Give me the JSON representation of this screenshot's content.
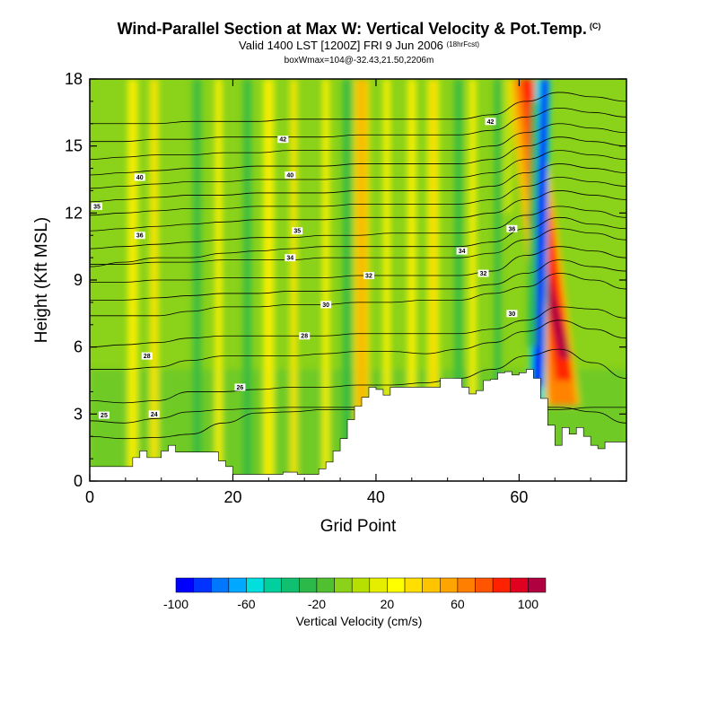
{
  "header": {
    "title": "Wind-Parallel Section at Max W: Vertical Velocity & Pot.Temp.",
    "title_mark": "(C)",
    "valid": "Valid 1400 LST [1200Z] FRI 9 Jun 2006",
    "forecast": "(18hrFcst)",
    "box": "boxWmax=104@-32.43,21.50,2206m"
  },
  "chart_data": {
    "type": "heatmap",
    "xlabel": "Grid Point",
    "ylabel": "Height (Kft MSL)",
    "xlim": [
      0,
      75
    ],
    "ylim": [
      0,
      18
    ],
    "x_ticks": [
      0,
      20,
      40,
      60
    ],
    "y_ticks": [
      0,
      3,
      6,
      9,
      12,
      15,
      18
    ],
    "colorbar": {
      "title": "Vertical Velocity (cm/s)",
      "ticks": [
        -100,
        -60,
        -20,
        20,
        60,
        100
      ],
      "levels": [
        -100,
        -90,
        -80,
        -70,
        -60,
        -50,
        -40,
        -30,
        -20,
        -10,
        0,
        10,
        20,
        30,
        40,
        50,
        60,
        70,
        80,
        90,
        100,
        110
      ],
      "colors": [
        "#0000ff",
        "#0033ff",
        "#0077ff",
        "#00a8ff",
        "#00dede",
        "#00cf9e",
        "#10c070",
        "#2db84a",
        "#50c030",
        "#8bd21a",
        "#b6e000",
        "#e6ee00",
        "#ffff00",
        "#ffde00",
        "#ffc400",
        "#ffa500",
        "#ff8000",
        "#ff5500",
        "#ff2200",
        "#e00020",
        "#b00040"
      ]
    },
    "terrain_kft": [
      [
        0,
        0.65
      ],
      [
        5,
        0.65
      ],
      [
        6,
        1.05
      ],
      [
        7,
        1.35
      ],
      [
        8,
        1.05
      ],
      [
        9,
        1.05
      ],
      [
        10,
        1.35
      ],
      [
        11,
        1.6
      ],
      [
        12,
        1.3
      ],
      [
        13,
        1.3
      ],
      [
        17,
        1.3
      ],
      [
        18,
        0.9
      ],
      [
        19,
        0.65
      ],
      [
        20,
        0.3
      ],
      [
        21,
        0.3
      ],
      [
        26,
        0.3
      ],
      [
        27,
        0.4
      ],
      [
        28,
        0.4
      ],
      [
        29,
        0.3
      ],
      [
        31,
        0.3
      ],
      [
        32,
        0.55
      ],
      [
        33,
        0.85
      ],
      [
        34,
        1.35
      ],
      [
        35,
        1.9
      ],
      [
        36,
        2.75
      ],
      [
        37,
        3.35
      ],
      [
        38,
        3.75
      ],
      [
        39,
        4.2
      ],
      [
        40,
        4.1
      ],
      [
        41,
        3.85
      ],
      [
        42,
        4.2
      ],
      [
        48,
        4.2
      ],
      [
        49,
        4.6
      ],
      [
        51,
        4.6
      ],
      [
        52,
        4.2
      ],
      [
        53,
        3.9
      ],
      [
        54,
        4.05
      ],
      [
        55,
        4.5
      ],
      [
        56,
        4.55
      ],
      [
        57,
        4.85
      ],
      [
        58,
        4.9
      ],
      [
        59,
        4.75
      ],
      [
        60,
        4.85
      ],
      [
        61,
        5.0
      ],
      [
        62,
        4.6
      ],
      [
        63,
        3.7
      ],
      [
        64,
        2.5
      ],
      [
        65,
        1.6
      ],
      [
        66,
        2.4
      ],
      [
        67,
        2.1
      ],
      [
        68,
        2.4
      ],
      [
        69,
        2.0
      ],
      [
        70,
        1.6
      ],
      [
        71,
        1.45
      ],
      [
        72,
        1.75
      ],
      [
        73,
        1.75
      ],
      [
        74,
        1.75
      ],
      [
        75,
        1.75
      ]
    ],
    "theta_contours": [
      {
        "label": "25",
        "z": [
          2.0,
          1.9,
          1.95,
          2.1,
          2.6,
          3.05,
          3.1,
          3.2,
          3.2,
          3.2,
          3.15,
          3.2,
          3.3,
          3.3,
          3.3,
          3.1,
          2.6
        ],
        "lx": 2,
        "ly": 2.95
      },
      {
        "label": "24",
        "z": [
          2.7,
          2.6,
          2.8,
          3.1,
          3.2,
          3.25,
          3.3,
          3.3,
          3.3,
          3.3,
          3.25,
          3.2,
          3.2,
          3.2,
          3.2,
          3.3,
          3.3
        ],
        "lx": 9,
        "ly": 3.0
      },
      {
        "label": "26",
        "z": [
          3.6,
          3.5,
          3.6,
          4.0,
          4.0,
          4.1,
          4.2,
          4.2,
          4.3,
          4.3,
          4.4,
          4.6,
          5.0,
          5.6,
          5.9,
          5.3,
          4.6
        ],
        "lx": 21,
        "ly": 4.2
      },
      {
        "label": "28",
        "z": [
          5.0,
          5.0,
          5.1,
          5.4,
          5.6,
          5.6,
          5.6,
          5.7,
          5.8,
          5.8,
          5.7,
          5.9,
          6.2,
          6.7,
          7.2,
          6.8,
          6.4
        ],
        "lx": 8,
        "ly": 5.6
      },
      {
        "label": "28",
        "z": [
          6.0,
          6.1,
          6.2,
          6.4,
          6.5,
          6.5,
          6.5,
          6.5,
          6.6,
          6.6,
          6.6,
          6.6,
          6.8,
          7.2,
          7.8,
          7.7,
          7.3
        ],
        "lx": 30,
        "ly": 6.5
      },
      {
        "label": "30",
        "z": [
          7.4,
          7.4,
          7.4,
          7.6,
          7.8,
          7.8,
          7.9,
          7.9,
          8.0,
          8.0,
          8.1,
          8.1,
          8.4,
          8.7,
          9.3,
          9.0,
          8.6
        ],
        "lx": 33,
        "ly": 7.9
      },
      {
        "label": "30",
        "z": [
          8.1,
          8.1,
          8.2,
          8.3,
          8.4,
          8.4,
          8.5,
          8.5,
          8.6,
          8.6,
          8.6,
          8.6,
          8.8,
          9.3,
          9.9,
          9.6,
          9.4
        ],
        "lx": 59,
        "ly": 7.5
      },
      {
        "label": "32",
        "z": [
          8.9,
          8.9,
          9.0,
          9.0,
          9.1,
          9.1,
          9.1,
          9.1,
          9.2,
          9.2,
          9.2,
          9.2,
          9.4,
          10.1,
          10.5,
          10.3,
          10.0
        ],
        "lx": 39,
        "ly": 9.2
      },
      {
        "label": "32",
        "z": [
          9.7,
          9.7,
          9.8,
          9.8,
          9.9,
          9.9,
          9.9,
          10.0,
          10.0,
          10.0,
          10.0,
          10.0,
          10.2,
          10.8,
          11.3,
          11.1,
          10.8
        ],
        "lx": 55,
        "ly": 9.3
      },
      {
        "label": "34",
        "z": [
          9.6,
          9.8,
          10.0,
          10.0,
          10.2,
          10.3,
          10.4,
          10.5,
          10.5,
          10.5,
          10.5,
          10.5,
          10.7,
          11.3,
          11.8,
          11.5,
          11.3
        ],
        "lx": 28,
        "ly": 10.0
      },
      {
        "label": "34",
        "z": [
          10.4,
          10.5,
          10.6,
          10.7,
          10.8,
          10.9,
          10.9,
          11.0,
          11.0,
          11.1,
          11.1,
          11.1,
          11.3,
          11.9,
          12.3,
          12.1,
          11.8
        ],
        "lx": 52,
        "ly": 10.3
      },
      {
        "label": "35",
        "z": [
          11.2,
          11.3,
          11.4,
          11.5,
          11.6,
          11.7,
          11.7,
          11.7,
          11.8,
          11.8,
          11.8,
          11.8,
          12.0,
          12.6,
          13.0,
          12.8,
          12.6
        ],
        "lx": 29,
        "ly": 11.2
      },
      {
        "label": "36",
        "z": [
          11.9,
          12.0,
          12.1,
          12.2,
          12.2,
          12.3,
          12.3,
          12.3,
          12.4,
          12.4,
          12.4,
          12.4,
          12.6,
          13.2,
          13.6,
          13.4,
          13.2
        ],
        "lx": 59,
        "ly": 11.3
      },
      {
        "label": "35",
        "z": [
          12.5,
          12.6,
          12.7,
          12.8,
          12.8,
          12.9,
          12.9,
          12.9,
          13.0,
          13.0,
          13.0,
          13.0,
          13.2,
          13.8,
          14.2,
          14.0,
          13.8
        ],
        "lx": 1,
        "ly": 12.3
      },
      {
        "label": "36",
        "z": [
          13.1,
          13.2,
          13.3,
          13.4,
          13.4,
          13.5,
          13.5,
          13.5,
          13.6,
          13.6,
          13.6,
          13.6,
          13.8,
          14.4,
          14.8,
          14.6,
          14.4
        ],
        "lx": 7,
        "ly": 11.0
      },
      {
        "label": "40",
        "z": [
          13.7,
          13.8,
          13.9,
          14.0,
          14.0,
          14.1,
          14.1,
          14.1,
          14.2,
          14.2,
          14.2,
          14.2,
          14.4,
          15.0,
          15.4,
          15.2,
          15.0
        ],
        "lx": 28,
        "ly": 13.7
      },
      {
        "label": "40",
        "z": [
          14.4,
          14.5,
          14.6,
          14.6,
          14.7,
          14.7,
          14.8,
          14.8,
          14.8,
          14.8,
          14.8,
          14.8,
          15.0,
          15.6,
          16.0,
          15.8,
          15.6
        ],
        "lx": 7,
        "ly": 13.6
      },
      {
        "label": "42",
        "z": [
          15.2,
          15.2,
          15.3,
          15.3,
          15.4,
          15.4,
          15.4,
          15.4,
          15.5,
          15.5,
          15.5,
          15.5,
          15.7,
          16.3,
          16.7,
          16.5,
          16.3
        ],
        "lx": 27,
        "ly": 15.3
      },
      {
        "label": "42",
        "z": [
          16.0,
          16.0,
          16.0,
          16.1,
          16.1,
          16.1,
          16.2,
          16.2,
          16.2,
          16.2,
          16.2,
          16.2,
          16.4,
          17.0,
          17.4,
          17.2,
          17.0
        ],
        "lx": 56,
        "ly": 16.1
      }
    ],
    "vv_bands": [
      {
        "x": 6.0,
        "w": 1.4,
        "value": 20
      },
      {
        "x": 9.0,
        "w": 1.2,
        "value": 25
      },
      {
        "x": 18.0,
        "w": 1.0,
        "value": 20
      },
      {
        "x": 25.0,
        "w": 1.5,
        "value": 20
      },
      {
        "x": 28.5,
        "w": 1.0,
        "value": 25
      },
      {
        "x": 33.0,
        "w": 1.0,
        "value": 20
      },
      {
        "x": 38.0,
        "w": 2.2,
        "value": 35
      },
      {
        "x": 41.5,
        "w": 1.0,
        "value": 20
      },
      {
        "x": 45.0,
        "w": 1.2,
        "value": 20
      },
      {
        "x": 48.0,
        "w": 1.6,
        "value": 25
      },
      {
        "x": 53.5,
        "w": 1.0,
        "value": 20
      }
    ],
    "vv_minus_bands": [
      {
        "x": 15.0,
        "w": 1.2,
        "value": -25
      },
      {
        "x": 22.0,
        "w": 1.2,
        "value": -25
      },
      {
        "x": 36.0,
        "w": 1.4,
        "value": -25
      },
      {
        "x": 51.5,
        "w": 1.2,
        "value": -25
      },
      {
        "x": 57.0,
        "w": 1.0,
        "value": -25
      }
    ],
    "updraft": {
      "x_top": 61,
      "x_bot": 66.5,
      "y_top": 18,
      "y_bot": 3.4,
      "max": 104
    },
    "downdraft": {
      "x_top": 63.3,
      "x_bot": 63.8,
      "y_top": 18,
      "y_bot": 5.5,
      "min": -100
    }
  }
}
